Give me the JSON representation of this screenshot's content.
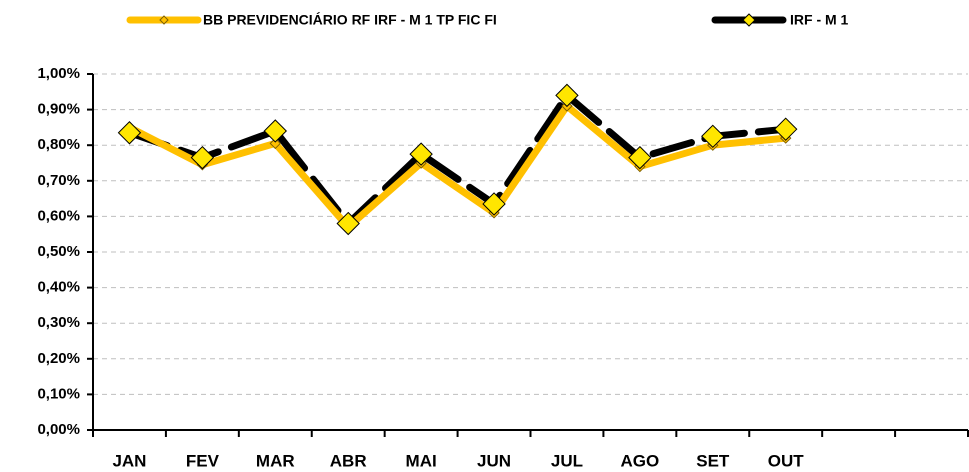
{
  "chart_data": {
    "type": "line",
    "categories": [
      "JAN",
      "FEV",
      "MAR",
      "ABR",
      "MAI",
      "JUN",
      "JUL",
      "AGO",
      "SET",
      "OUT",
      null,
      null
    ],
    "series": [
      {
        "name": "BB PREVIDENCIÁRIO RF IRF - M 1 TP FIC FI",
        "color": "#ffc000",
        "values": [
          0.85,
          0.745,
          0.805,
          0.57,
          0.75,
          0.61,
          0.91,
          0.74,
          0.8,
          0.82,
          null,
          null
        ]
      },
      {
        "name": "IRF - M 1",
        "color": "#000000",
        "marker_color": "#ffe600",
        "values": [
          0.835,
          0.765,
          0.84,
          0.58,
          0.775,
          0.635,
          0.94,
          0.765,
          0.825,
          0.845,
          null,
          null
        ]
      }
    ],
    "ylim": [
      0,
      1
    ],
    "yticks": [
      {
        "value": 0,
        "label": "0,00%"
      },
      {
        "value": 0.1,
        "label": "0,10%"
      },
      {
        "value": 0.2,
        "label": "0,20%"
      },
      {
        "value": 0.3,
        "label": "0,30%"
      },
      {
        "value": 0.4,
        "label": "0,40%"
      },
      {
        "value": 0.5,
        "label": "0,50%"
      },
      {
        "value": 0.6,
        "label": "0,60%"
      },
      {
        "value": 0.7,
        "label": "0,70%"
      },
      {
        "value": 0.8,
        "label": "0,80%"
      },
      {
        "value": 0.9,
        "label": "0,90%"
      },
      {
        "value": 1,
        "label": "1,00%"
      }
    ],
    "grid": true,
    "legend": "top"
  }
}
